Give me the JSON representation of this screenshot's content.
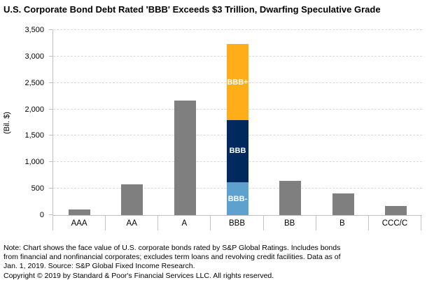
{
  "chart_data": {
    "type": "bar",
    "stacked": true,
    "title": "U.S. Corporate Bond Debt Rated 'BBB' Exceeds $3 Trillion, Dwarfing Speculative Grade",
    "ylabel": "(Bil. $)",
    "xlabel": "",
    "ylim": [
      0,
      3500
    ],
    "ytick_interval": 500,
    "yticks": [
      "0",
      "500",
      "1,000",
      "1,500",
      "2,000",
      "2,500",
      "3,000",
      "3,500"
    ],
    "grid": "horizontal-dashed",
    "legend_position": "none (stack segments labeled inline in white)",
    "categories": [
      "AAA",
      "AA",
      "A",
      "BBB",
      "BB",
      "B",
      "CCC/C"
    ],
    "values_total": [
      100,
      580,
      2170,
      3230,
      650,
      410,
      170
    ],
    "bars": [
      {
        "category": "AAA",
        "segments": [
          {
            "label": "",
            "value": 100,
            "color": "#7F7F7F"
          }
        ]
      },
      {
        "category": "AA",
        "segments": [
          {
            "label": "",
            "value": 580,
            "color": "#7F7F7F"
          }
        ]
      },
      {
        "category": "A",
        "segments": [
          {
            "label": "",
            "value": 2170,
            "color": "#7F7F7F"
          }
        ]
      },
      {
        "category": "BBB",
        "segments": [
          {
            "label": "BBB-",
            "value": 620,
            "color": "#5EA1CF",
            "label_color": "#FFFFFF"
          },
          {
            "label": "BBB",
            "value": 1180,
            "color": "#002A5E",
            "label_color": "#FFFFFF"
          },
          {
            "label": "BBB+",
            "value": 1430,
            "color": "#FFAE19",
            "label_color": "#FFFFFF"
          }
        ]
      },
      {
        "category": "BB",
        "segments": [
          {
            "label": "",
            "value": 650,
            "color": "#7F7F7F"
          }
        ]
      },
      {
        "category": "B",
        "segments": [
          {
            "label": "",
            "value": 410,
            "color": "#7F7F7F"
          }
        ]
      },
      {
        "category": "CCC/C",
        "segments": [
          {
            "label": "",
            "value": 170,
            "color": "#7F7F7F"
          }
        ]
      }
    ]
  },
  "colors": {
    "bar_gray": "#7F7F7F",
    "bbb_minus_blue": "#5EA1CF",
    "bbb_navy": "#002A5E",
    "bbb_plus_orange": "#FFAE19",
    "gridline": "#D9D9D9",
    "axis_line": "#BFBFBF",
    "text": "#000000",
    "background": "#FFFFFF"
  },
  "notes": {
    "lines": [
      "Note: Chart shows the face value of U.S. corporate bonds rated by S&P Global Ratings. Includes bonds",
      "from financial and nonfinancial corporates; excludes term loans and revolving credit facilities. Data as of",
      "Jan. 1, 2019. Source: S&P Global Fixed Income Research.",
      "Copyright © 2019 by Standard & Poor's Financial Services LLC. All rights reserved."
    ]
  }
}
